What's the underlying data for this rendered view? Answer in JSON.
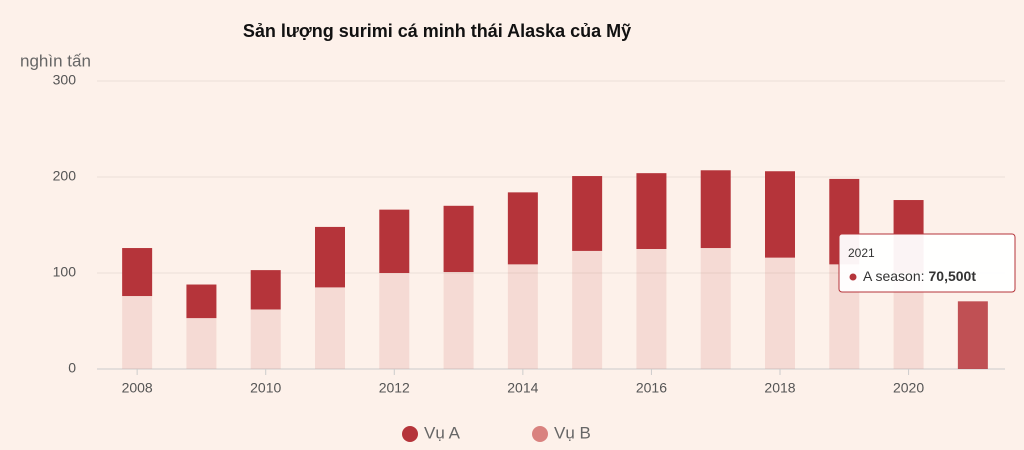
{
  "chart_data": {
    "type": "stacked-bar",
    "title": "Sản lượng surimi cá minh thái Alaska của Mỹ",
    "y_label": "nghìn tấn",
    "categories": [
      "2008",
      null,
      "2010",
      null,
      "2012",
      null,
      "2014",
      null,
      "2016",
      null,
      "2018",
      null,
      "2020",
      null
    ],
    "series": [
      {
        "name": "Vụ B",
        "color": "#d9827f",
        "values": [
          76,
          53,
          62,
          85,
          100,
          101,
          109,
          123,
          125,
          126,
          116,
          109,
          100,
          null
        ]
      },
      {
        "name": "Vụ A",
        "color": "#b5343a",
        "values": [
          50,
          35,
          41,
          63,
          66,
          69,
          75,
          78,
          79,
          81,
          90,
          89,
          76,
          70.5
        ]
      }
    ],
    "ylim": [
      0,
      300
    ],
    "yticks": [
      0,
      100,
      200,
      300
    ],
    "grid": true,
    "tooltip": {
      "title": "2021",
      "label": "A season:",
      "value": "70,500t"
    }
  }
}
